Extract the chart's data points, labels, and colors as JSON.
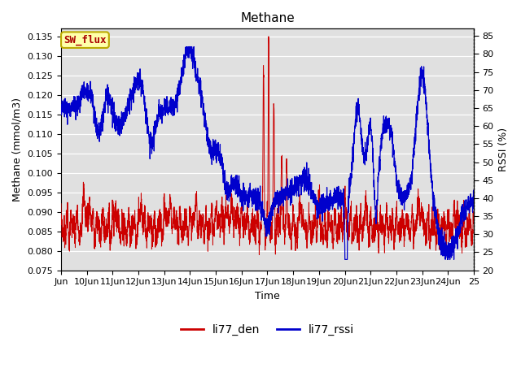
{
  "title": "Methane",
  "ylabel_left": "Methane (mmol/m3)",
  "ylabel_right": "RSSI (%)",
  "xlabel": "Time",
  "ylim_left": [
    0.075,
    0.137
  ],
  "ylim_right": [
    20,
    87
  ],
  "yticks_left": [
    0.075,
    0.08,
    0.085,
    0.09,
    0.095,
    0.1,
    0.105,
    0.11,
    0.115,
    0.12,
    0.125,
    0.13,
    0.135
  ],
  "yticks_right": [
    20,
    25,
    30,
    35,
    40,
    45,
    50,
    55,
    60,
    65,
    70,
    75,
    80,
    85
  ],
  "xtick_labels": [
    "Jun",
    "10Jun",
    "11Jun",
    "12Jun",
    "13Jun",
    "14Jun",
    "15Jun",
    "16Jun",
    "17Jun",
    "18Jun",
    "19Jun",
    "20Jun",
    "21Jun",
    "22Jun",
    "23Jun",
    "24Jun",
    "25"
  ],
  "bg_color": "#e0e0e0",
  "fig_bg": "#ffffff",
  "annotation_text": "SW_flux",
  "annotation_fc": "#ffffaa",
  "annotation_ec": "#bbaa00",
  "annotation_tc": "#aa0000",
  "line_den_color": "#cc0000",
  "line_rssi_color": "#0000cc",
  "legend_labels": [
    "li77_den",
    "li77_rssi"
  ]
}
